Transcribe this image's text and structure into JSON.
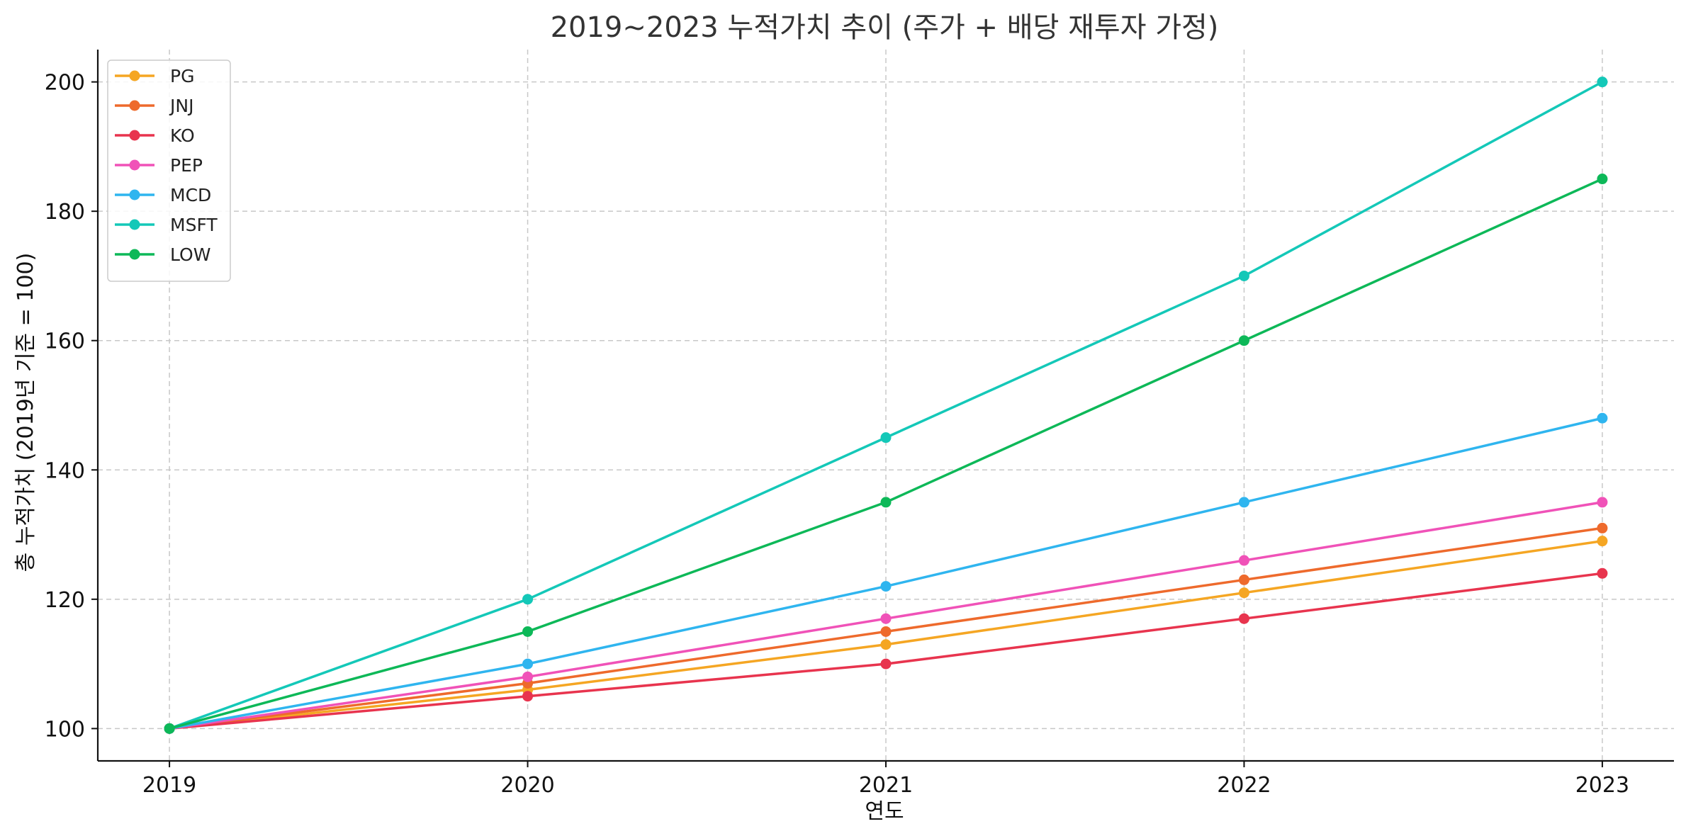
{
  "chart_data": {
    "type": "line",
    "title": "2019~2023 누적가치 추이 (주가 + 배당 재투자 가정)",
    "xlabel": "연도",
    "ylabel": "총 누적가치 (2019년 기준 = 100)",
    "x": [
      2019,
      2020,
      2021,
      2022,
      2023
    ],
    "x_tick_labels": [
      "2019",
      "2020",
      "2021",
      "2022",
      "2023"
    ],
    "xlim": [
      2018.8,
      2023.2
    ],
    "ylim": [
      95,
      205
    ],
    "y_ticks": [
      100,
      120,
      140,
      160,
      180,
      200
    ],
    "y_tick_labels": [
      "100",
      "120",
      "140",
      "160",
      "180",
      "200"
    ],
    "grid": true,
    "legend_position": "top-left",
    "series": [
      {
        "name": "PG",
        "color": "#f5a623",
        "values": [
          100,
          106,
          113,
          121,
          129
        ]
      },
      {
        "name": "JNJ",
        "color": "#ee6a2c",
        "values": [
          100,
          107,
          115,
          123,
          131
        ]
      },
      {
        "name": "KO",
        "color": "#e8344e",
        "values": [
          100,
          105,
          110,
          117,
          124
        ]
      },
      {
        "name": "PEP",
        "color": "#f052b8",
        "values": [
          100,
          108,
          117,
          126,
          135
        ]
      },
      {
        "name": "MCD",
        "color": "#2fb5ef",
        "values": [
          100,
          110,
          122,
          135,
          148
        ]
      },
      {
        "name": "MSFT",
        "color": "#14c8b8",
        "values": [
          100,
          120,
          145,
          170,
          200
        ]
      },
      {
        "name": "LOW",
        "color": "#0db858",
        "values": [
          100,
          115,
          135,
          160,
          185
        ]
      }
    ]
  }
}
